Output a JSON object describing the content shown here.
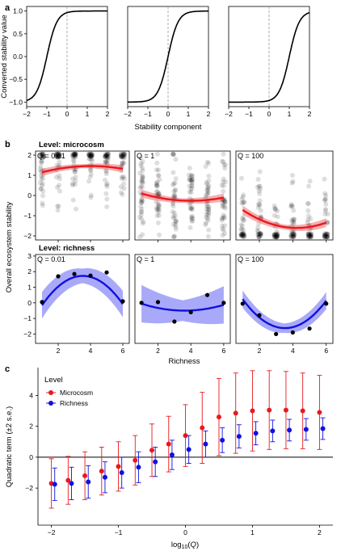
{
  "panel_labels": {
    "a": "a",
    "b": "b",
    "c": "c"
  },
  "chart_data": [
    {
      "type": "line",
      "panel": "a",
      "ylabel": "Converted stability value",
      "xlabel": "Stability component",
      "xlim": [
        -2,
        2
      ],
      "ylim": [
        -1.1,
        1.1
      ],
      "xticks": [
        -2,
        -1,
        0,
        1,
        2
      ],
      "yticks": [
        -1.0,
        -0.5,
        0.0,
        0.5,
        1.0
      ],
      "ytick_labels": [
        "-1.0",
        "-0.5",
        "0.0",
        "0.5",
        "1.0"
      ],
      "reference_line_x": 0,
      "series": [
        {
          "center": -1.0,
          "steepness": 4
        },
        {
          "center": 0.0,
          "steepness": 4
        },
        {
          "center": 1.0,
          "steepness": 4
        }
      ]
    },
    {
      "type": "scatter",
      "panel": "b",
      "ylabel": "Overall ecosystem stability",
      "xlabel": "Richness",
      "xticks": [
        2,
        4,
        6
      ],
      "rows": [
        {
          "level_title": "Level: microcosm",
          "ylim": [
            -2.2,
            2.2
          ],
          "yticks": [
            -2,
            -1,
            0,
            1,
            2
          ],
          "color": "#e8191f",
          "facets": [
            {
              "title": "Q = 0.01",
              "fit": [
                0.9,
                0.28,
                -0.035
              ],
              "band": 0.18
            },
            {
              "title": "Q = 1",
              "fit": [
                0.38,
                -0.32,
                0.04
              ],
              "band": 0.2
            },
            {
              "title": "Q = 100",
              "fit": [
                -0.08,
                -0.72,
                0.085
              ],
              "band": 0.22
            }
          ]
        },
        {
          "level_title": "Level: richness",
          "ylim": [
            -2.6,
            3.1
          ],
          "yticks": [
            -2,
            -1,
            0,
            1,
            2,
            3
          ],
          "color": "#1010e0",
          "facets": [
            {
              "title": "Q = 0.01",
              "points": [
                [
                  1,
                  0.05
                ],
                [
                  2,
                  1.7
                ],
                [
                  3,
                  1.85
                ],
                [
                  4,
                  1.75
                ],
                [
                  5,
                  1.95
                ],
                [
                  6,
                  0.1
                ]
              ],
              "fit": [
                -1.94,
                2.08,
                -0.295
              ],
              "band": 0.85
            },
            {
              "title": "Q = 1",
              "points": [
                [
                  1,
                  0.0
                ],
                [
                  2,
                  0.05
                ],
                [
                  3,
                  -1.2
                ],
                [
                  4,
                  -0.6
                ],
                [
                  5,
                  0.5
                ],
                [
                  6,
                  0.0
                ]
              ],
              "fit": [
                0.35,
                -0.47,
                0.065
              ],
              "band": 1.2
            },
            {
              "title": "Q = 100",
              "points": [
                [
                  1,
                  -0.05
                ],
                [
                  2,
                  -0.8
                ],
                [
                  3,
                  -2.0
                ],
                [
                  4,
                  -1.9
                ],
                [
                  5,
                  -1.65
                ],
                [
                  6,
                  -0.05
                ]
              ],
              "fit": [
                2.0,
                -2.05,
                0.29
              ],
              "band": 0.55
            }
          ]
        }
      ]
    },
    {
      "type": "scatter",
      "panel": "c",
      "ylabel": "Quadratic term (±2 s.e.)",
      "xlabel": "log10(Q)",
      "xlim": [
        -2.2,
        2.2
      ],
      "ylim": [
        -4.4,
        5.8
      ],
      "xticks": [
        -2,
        -1,
        0,
        1,
        2
      ],
      "yticks": [
        -2,
        0,
        2,
        4
      ],
      "legend": {
        "title": "Level",
        "position": "top-left"
      },
      "series": [
        {
          "name": "Microcosm",
          "color": "#e8191f",
          "x": [
            -2.0,
            -1.75,
            -1.5,
            -1.25,
            -1.0,
            -0.75,
            -0.5,
            -0.25,
            0.0,
            0.25,
            0.5,
            0.75,
            1.0,
            1.25,
            1.5,
            1.75,
            2.0
          ],
          "y": [
            -1.7,
            -1.5,
            -1.2,
            -0.9,
            -0.6,
            -0.2,
            0.45,
            0.85,
            1.4,
            1.9,
            2.6,
            2.85,
            3.0,
            3.05,
            3.05,
            3.0,
            2.9
          ],
          "err": [
            1.6,
            1.55,
            1.55,
            1.55,
            1.6,
            1.6,
            1.7,
            1.8,
            2.0,
            2.3,
            2.5,
            2.6,
            2.6,
            2.55,
            2.5,
            2.45,
            2.4
          ]
        },
        {
          "name": "Richness",
          "color": "#1010e0",
          "x": [
            -1.95,
            -1.7,
            -1.45,
            -1.2,
            -0.95,
            -0.7,
            -0.45,
            -0.2,
            0.05,
            0.3,
            0.55,
            0.8,
            1.05,
            1.3,
            1.55,
            1.8,
            2.05
          ],
          "y": [
            -1.75,
            -1.7,
            -1.6,
            -1.3,
            -1.0,
            -0.65,
            -0.3,
            0.15,
            0.5,
            0.85,
            1.1,
            1.35,
            1.55,
            1.7,
            1.75,
            1.8,
            1.85
          ],
          "err": [
            1.05,
            1.05,
            1.05,
            1.0,
            1.0,
            1.0,
            0.95,
            0.95,
            0.9,
            0.85,
            0.8,
            0.75,
            0.75,
            0.7,
            0.7,
            0.7,
            0.7
          ]
        }
      ]
    }
  ]
}
